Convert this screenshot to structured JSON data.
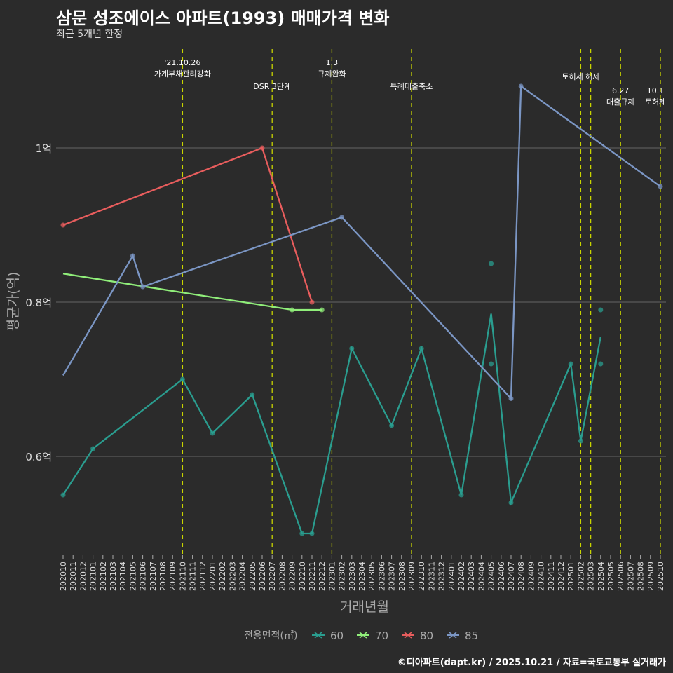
{
  "title": "삼문 성조에이스 아파트(1993) 매매가격 변화",
  "subtitle": "최근 5개년 한정",
  "caption": "©디아파트(dapt.kr) / 2025.10.21 / 자료=국토교통부 실거래가",
  "chart_data": {
    "type": "line",
    "xlabel": "거래년월",
    "ylabel": "평균가(억)",
    "ylim": [
      0.475,
      1.125
    ],
    "yticks": [
      {
        "v": 0.6,
        "label": "0.6억"
      },
      {
        "v": 0.8,
        "label": "0.8억"
      },
      {
        "v": 1.0,
        "label": "1억"
      }
    ],
    "months": [
      "202010",
      "202011",
      "202012",
      "202101",
      "202102",
      "202103",
      "202104",
      "202105",
      "202106",
      "202107",
      "202108",
      "202109",
      "202110",
      "202111",
      "202112",
      "202201",
      "202202",
      "202203",
      "202204",
      "202205",
      "202206",
      "202207",
      "202208",
      "202209",
      "202210",
      "202211",
      "202212",
      "202301",
      "202302",
      "202303",
      "202304",
      "202305",
      "202306",
      "202307",
      "202308",
      "202309",
      "202310",
      "202311",
      "202312",
      "202401",
      "202402",
      "202403",
      "202404",
      "202405",
      "202406",
      "202407",
      "202408",
      "202409",
      "202410",
      "202411",
      "202412",
      "202501",
      "202502",
      "202503",
      "202504",
      "202505",
      "202506",
      "202507",
      "202508",
      "202509",
      "202510"
    ],
    "legend_title": "전용면적(㎡)",
    "series": [
      {
        "name": "60",
        "color": "#2a9d8f",
        "line": [
          [
            "202010",
            0.55
          ],
          [
            "202101",
            0.61
          ],
          [
            "202110",
            0.7
          ],
          [
            "202201",
            0.63
          ],
          [
            "202205",
            0.68
          ],
          [
            "202210",
            0.5
          ],
          [
            "202211",
            0.5
          ],
          [
            "202303",
            0.74
          ],
          [
            "202307",
            0.64
          ],
          [
            "202310",
            0.74
          ],
          [
            "202402",
            0.55
          ],
          [
            "202405",
            0.785
          ],
          [
            "202407",
            0.54
          ],
          [
            "202501",
            0.72
          ],
          [
            "202502",
            0.62
          ],
          [
            "202504",
            0.755
          ]
        ],
        "points": [
          [
            "202010",
            0.55
          ],
          [
            "202101",
            0.61
          ],
          [
            "202110",
            0.7
          ],
          [
            "202201",
            0.63
          ],
          [
            "202205",
            0.68
          ],
          [
            "202210",
            0.5
          ],
          [
            "202211",
            0.5
          ],
          [
            "202303",
            0.74
          ],
          [
            "202307",
            0.64
          ],
          [
            "202310",
            0.74
          ],
          [
            "202402",
            0.55
          ],
          [
            "202405",
            0.85
          ],
          [
            "202405",
            0.72
          ],
          [
            "202407",
            0.54
          ],
          [
            "202501",
            0.72
          ],
          [
            "202502",
            0.62
          ],
          [
            "202504",
            0.79
          ],
          [
            "202504",
            0.72
          ]
        ]
      },
      {
        "name": "70",
        "color": "#90ee7a",
        "line": [
          [
            "202010",
            0.837
          ],
          [
            "202209",
            0.79
          ],
          [
            "202212",
            0.79
          ]
        ],
        "points": [
          [
            "202209",
            0.79
          ],
          [
            "202212",
            0.79
          ]
        ]
      },
      {
        "name": "80",
        "color": "#e85d5d",
        "line": [
          [
            "202010",
            0.9
          ],
          [
            "202206",
            1.0
          ],
          [
            "202211",
            0.8
          ]
        ],
        "points": [
          [
            "202010",
            0.9
          ],
          [
            "202206",
            1.0
          ],
          [
            "202211",
            0.8
          ]
        ]
      },
      {
        "name": "85",
        "color": "#7b96c4",
        "line": [
          [
            "202010",
            0.705
          ],
          [
            "202105",
            0.86
          ],
          [
            "202106",
            0.82
          ],
          [
            "202302",
            0.91
          ],
          [
            "202407",
            0.675
          ],
          [
            "202408",
            1.08
          ],
          [
            "202510",
            0.95
          ]
        ],
        "points": [
          [
            "202105",
            0.86
          ],
          [
            "202106",
            0.82
          ],
          [
            "202302",
            0.91
          ],
          [
            "202407",
            0.675
          ],
          [
            "202408",
            1.08
          ],
          [
            "202510",
            0.95
          ]
        ]
      }
    ],
    "events": [
      {
        "month": "202110",
        "lines": [
          "'21.10.26",
          "가계부채관리강화"
        ],
        "row": 0
      },
      {
        "month": "202207",
        "lines": [
          "DSR 3단계"
        ],
        "row": 2
      },
      {
        "month": "202301",
        "lines": [
          "1.3",
          "규제완화"
        ],
        "row": 0
      },
      {
        "month": "202309",
        "lines": [
          "특례대출축소"
        ],
        "row": 2
      },
      {
        "month": "202502",
        "lines": [
          "토허제 해제"
        ],
        "row": 1
      },
      {
        "month": "202503",
        "lines": [],
        "row": 1
      },
      {
        "month": "202506",
        "lines": [
          "6.27",
          "대출규제"
        ],
        "row": 3
      },
      {
        "month": "202510",
        "lines": [
          "10.1",
          "토허제"
        ],
        "row": 3
      }
    ]
  }
}
